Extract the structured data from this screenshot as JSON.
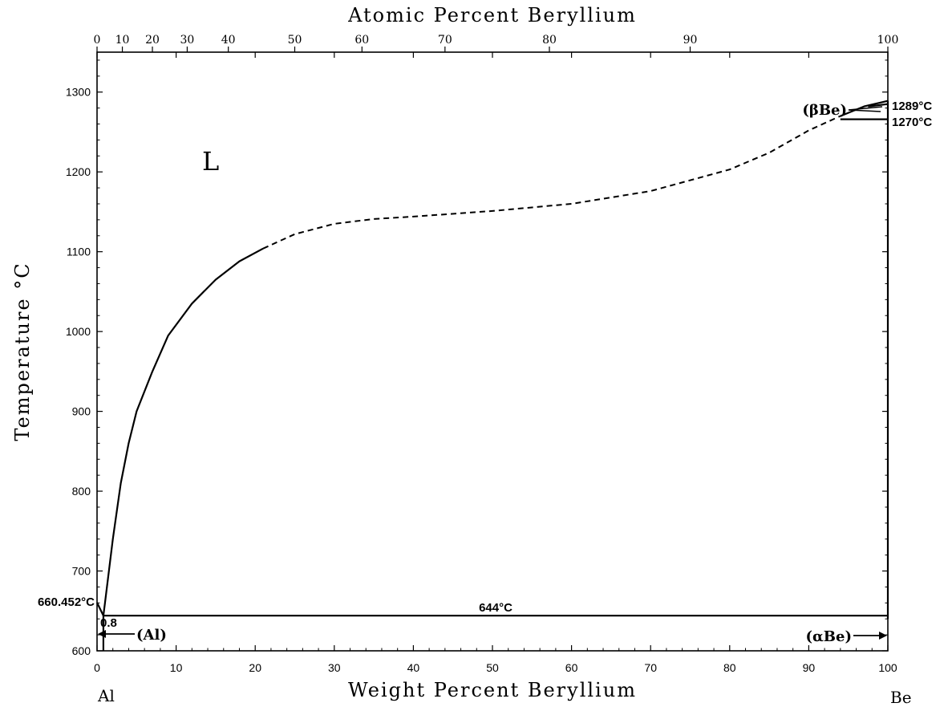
{
  "chart_data": {
    "type": "line",
    "title": "",
    "xlabel": "Weight Percent Beryllium",
    "ylabel": "Temperature °C",
    "top_axis_label": "Atomic Percent Beryllium",
    "xlim": [
      0,
      100
    ],
    "ylim": [
      600,
      1350
    ],
    "x_ticks": [
      "0",
      "10",
      "20",
      "30",
      "40",
      "50",
      "60",
      "70",
      "80",
      "90",
      "100"
    ],
    "y_ticks": [
      "600",
      "700",
      "800",
      "900",
      "1000",
      "1100",
      "1200",
      "1300"
    ],
    "top_ticks": [
      {
        "label": "0",
        "wt": 0
      },
      {
        "label": "10",
        "wt": 3.2
      },
      {
        "label": "20",
        "wt": 7.0
      },
      {
        "label": "30",
        "wt": 11.4
      },
      {
        "label": "40",
        "wt": 16.6
      },
      {
        "label": "50",
        "wt": 25.0
      },
      {
        "label": "60",
        "wt": 33.5
      },
      {
        "label": "70",
        "wt": 44.0
      },
      {
        "label": "80",
        "wt": 57.2
      },
      {
        "label": "90",
        "wt": 75.0
      },
      {
        "label": "100",
        "wt": 100
      }
    ],
    "end_labels": {
      "left": "Al",
      "right": "Be"
    },
    "series": [
      {
        "style": "solid",
        "points": [
          [
            0.8,
            644
          ],
          [
            1,
            660
          ],
          [
            2,
            740
          ],
          [
            3,
            810
          ],
          [
            4,
            860
          ],
          [
            5,
            900
          ],
          [
            7,
            950
          ],
          [
            9,
            995
          ],
          [
            12,
            1035
          ],
          [
            15,
            1065
          ],
          [
            18,
            1088
          ],
          [
            21,
            1104
          ]
        ]
      },
      {
        "style": "dashed",
        "points": [
          [
            21,
            1104
          ],
          [
            25,
            1122
          ],
          [
            30,
            1135
          ],
          [
            35,
            1141
          ],
          [
            40,
            1144
          ],
          [
            50,
            1151
          ],
          [
            60,
            1160
          ],
          [
            70,
            1176
          ],
          [
            80,
            1203
          ],
          [
            85,
            1224
          ],
          [
            90,
            1252
          ],
          [
            94,
            1270
          ]
        ]
      },
      {
        "style": "solid",
        "points": [
          [
            94,
            1270
          ],
          [
            97,
            1282
          ],
          [
            100,
            1289
          ]
        ]
      },
      {
        "style": "solid",
        "points": [
          [
            97.5,
            1282
          ],
          [
            100,
            1285
          ]
        ]
      },
      {
        "style": "solid",
        "points": [
          [
            94,
            1266
          ],
          [
            100,
            1266
          ]
        ]
      },
      {
        "style": "solid",
        "points": [
          [
            0.8,
            644
          ],
          [
            100,
            644
          ]
        ]
      },
      {
        "style": "solid",
        "points": [
          [
            100,
            640
          ],
          [
            100,
            1289
          ]
        ]
      },
      {
        "style": "solid",
        "points": [
          [
            0,
            660.452
          ],
          [
            0.8,
            644
          ]
        ]
      },
      {
        "style": "solid",
        "points": [
          [
            0.8,
            644
          ],
          [
            0.8,
            600
          ]
        ]
      }
    ],
    "annotations": {
      "liquid": "L",
      "al_melting": "660.452°C",
      "eutectic": "644°C",
      "solubility": "0.8",
      "al_phase": "(Al)",
      "be_beta": "(βBe)",
      "be_alpha": "(αBe)",
      "t_1289": "1289°C",
      "t_1270": "1270°C"
    }
  }
}
